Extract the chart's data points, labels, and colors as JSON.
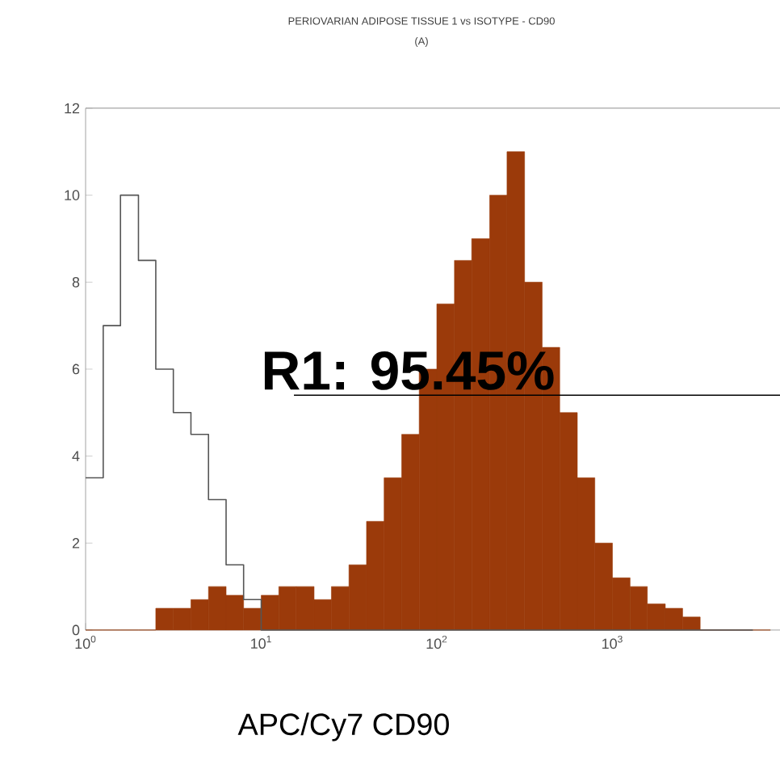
{
  "chart_data": {
    "type": "histogram",
    "title": "PERIOVARIAN ADIPOSE TISSUE 1 vs ISOTYPE - CD90",
    "subtitle": "(A)",
    "xlabel": "APC/Cy7 CD90",
    "log": "x",
    "xlim": [
      1,
      9000
    ],
    "xticks": [
      {
        "value": 1,
        "label": "10$^{0}$"
      },
      {
        "value": 10,
        "label": "10$^{1}$"
      },
      {
        "value": 100,
        "label": "10$^{2}$"
      },
      {
        "value": 1000,
        "label": "10$^{3}$"
      }
    ],
    "ylim": [
      0,
      12
    ],
    "yticks": [
      0,
      2,
      4,
      6,
      8,
      10,
      12
    ],
    "bins": [
      1,
      1.26,
      1.58,
      2,
      2.51,
      3.16,
      3.98,
      5.01,
      6.31,
      7.94,
      10,
      12.6,
      15.8,
      20,
      25.1,
      31.6,
      39.8,
      50.1,
      63.1,
      79.4,
      100,
      126,
      158,
      200,
      251,
      316,
      398,
      501,
      631,
      794,
      1000,
      1260,
      1580,
      2000,
      2510,
      3160,
      3980,
      5010,
      6310,
      7940
    ],
    "series": [
      {
        "color": "#9b3a0a",
        "values": [
          0,
          0,
          0,
          0,
          0.5,
          0.5,
          0.7,
          1,
          0.8,
          0.5,
          0.8,
          1,
          1,
          0.7,
          1,
          1.5,
          2.5,
          3.5,
          4.5,
          6,
          7.5,
          8.5,
          9,
          10,
          11,
          8,
          6.5,
          5,
          3.5,
          2,
          1.2,
          1,
          0.6,
          0.5,
          0.3,
          0,
          0,
          0,
          0
        ]
      },
      {
        "type": "step",
        "color": "#555555",
        "x": [
          1,
          1.26,
          1.58,
          2,
          2.51,
          3.16,
          3.98,
          5.01,
          6.31,
          7.94,
          10,
          12.6,
          15.8,
          20,
          25.1,
          31.6,
          39.8,
          50.1,
          63.1,
          79.4,
          100,
          126,
          158,
          200,
          251,
          316,
          398,
          501,
          631,
          794,
          1000,
          1260,
          1580,
          2000,
          2510,
          3160,
          3980,
          5010,
          6310
        ],
        "values": [
          3.5,
          7,
          10,
          8.5,
          6,
          5,
          4.5,
          3,
          1.5,
          0.7,
          0,
          0,
          0,
          0,
          0,
          0,
          0,
          0,
          0,
          0,
          0,
          0,
          0,
          0,
          0,
          0,
          0,
          0,
          0,
          0,
          0,
          0,
          0,
          0,
          0,
          0,
          0,
          0,
          0
        ]
      }
    ],
    "annotations": [
      "R1: 95.45%"
    ]
  }
}
